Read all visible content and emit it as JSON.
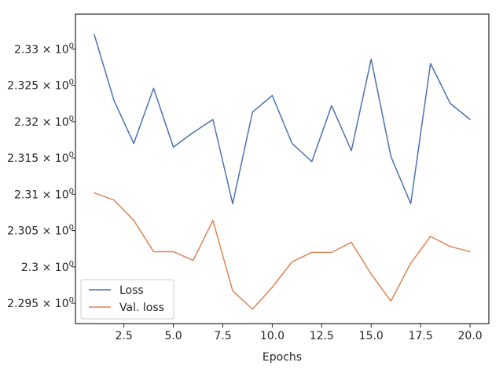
{
  "chart_data": {
    "type": "line",
    "title": "",
    "xlabel": "Epochs",
    "ylabel": "",
    "xlim": [
      0.05,
      20.95
    ],
    "ylim": [
      2.2922,
      2.3348
    ],
    "x_ticks": [
      2.5,
      5.0,
      7.5,
      10.0,
      12.5,
      15.0,
      17.5,
      20.0
    ],
    "x_tick_labels": [
      "2.5",
      "5.0",
      "7.5",
      "10.0",
      "12.5",
      "15.0",
      "17.5",
      "20.0"
    ],
    "y_ticks": [
      2.295,
      2.3,
      2.305,
      2.31,
      2.315,
      2.32,
      2.325,
      2.33
    ],
    "y_tick_labels": [
      "2.295",
      "2.3",
      "2.305",
      "2.31",
      "2.315",
      "2.32",
      "2.325",
      "2.33"
    ],
    "y_tick_suffix": "× 10",
    "y_tick_exponent": "0",
    "grid": false,
    "legend_position": "lower-left",
    "x": [
      1,
      2,
      3,
      4,
      5,
      6,
      7,
      8,
      9,
      10,
      11,
      12,
      13,
      14,
      15,
      16,
      17,
      18,
      19,
      20
    ],
    "series": [
      {
        "name": "Loss",
        "color": "#4c72b0",
        "values": [
          2.332,
          2.3229,
          2.317,
          2.3246,
          2.3165,
          2.3185,
          2.3203,
          2.3087,
          2.3213,
          2.3236,
          2.317,
          2.3145,
          2.3222,
          2.316,
          2.3286,
          2.3152,
          2.3087,
          2.328,
          2.3225,
          2.3203
        ]
      },
      {
        "name": "Val. loss",
        "color": "#dd8452",
        "values": [
          2.3102,
          2.3092,
          2.3064,
          2.3021,
          2.3021,
          2.3009,
          2.3064,
          2.2967,
          2.2942,
          2.2972,
          2.3007,
          2.302,
          2.302,
          2.3034,
          2.299,
          2.2953,
          2.3005,
          2.3042,
          2.3028,
          2.3021
        ]
      }
    ]
  }
}
